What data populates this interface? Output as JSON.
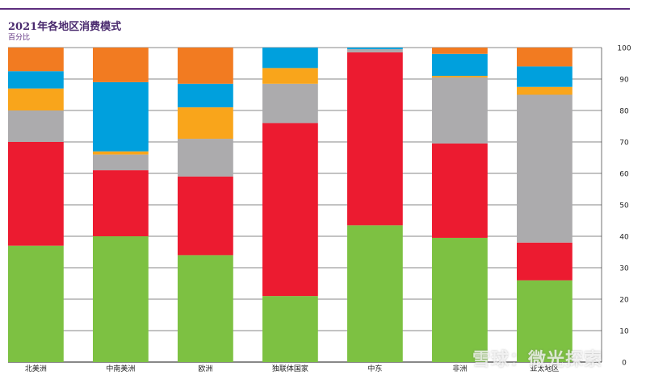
{
  "title": "2021年各地区消费模式",
  "subtitle": "百分比",
  "watermark": "雪球：微光探索",
  "chart_data": {
    "type": "bar",
    "stacked": true,
    "categories": [
      "北美洲",
      "中南美洲",
      "欧洲",
      "独联体国家",
      "中东",
      "非洲",
      "亚太地区"
    ],
    "series": [
      {
        "color": "#7dc142",
        "values": [
          37,
          40,
          34,
          21,
          43.5,
          39.5,
          26
        ]
      },
      {
        "color": "#ec1b30",
        "values": [
          33,
          21,
          25,
          55,
          55,
          30,
          12
        ]
      },
      {
        "color": "#acabad",
        "values": [
          10,
          5,
          12,
          12.5,
          1,
          21,
          47
        ]
      },
      {
        "color": "#f9a51b",
        "values": [
          7,
          1,
          10,
          5,
          0,
          0.5,
          2.5
        ]
      },
      {
        "color": "#00a0dd",
        "values": [
          5.5,
          22,
          7.5,
          6.5,
          0.5,
          7,
          6.5
        ]
      },
      {
        "color": "#f27b21",
        "values": [
          7.5,
          11,
          11.5,
          0,
          0,
          2,
          6
        ]
      }
    ],
    "yticks": [
      0,
      10,
      20,
      30,
      40,
      50,
      60,
      70,
      80,
      90,
      100
    ],
    "ylim": [
      0,
      100
    ],
    "grid": true,
    "axis_position": "right"
  }
}
